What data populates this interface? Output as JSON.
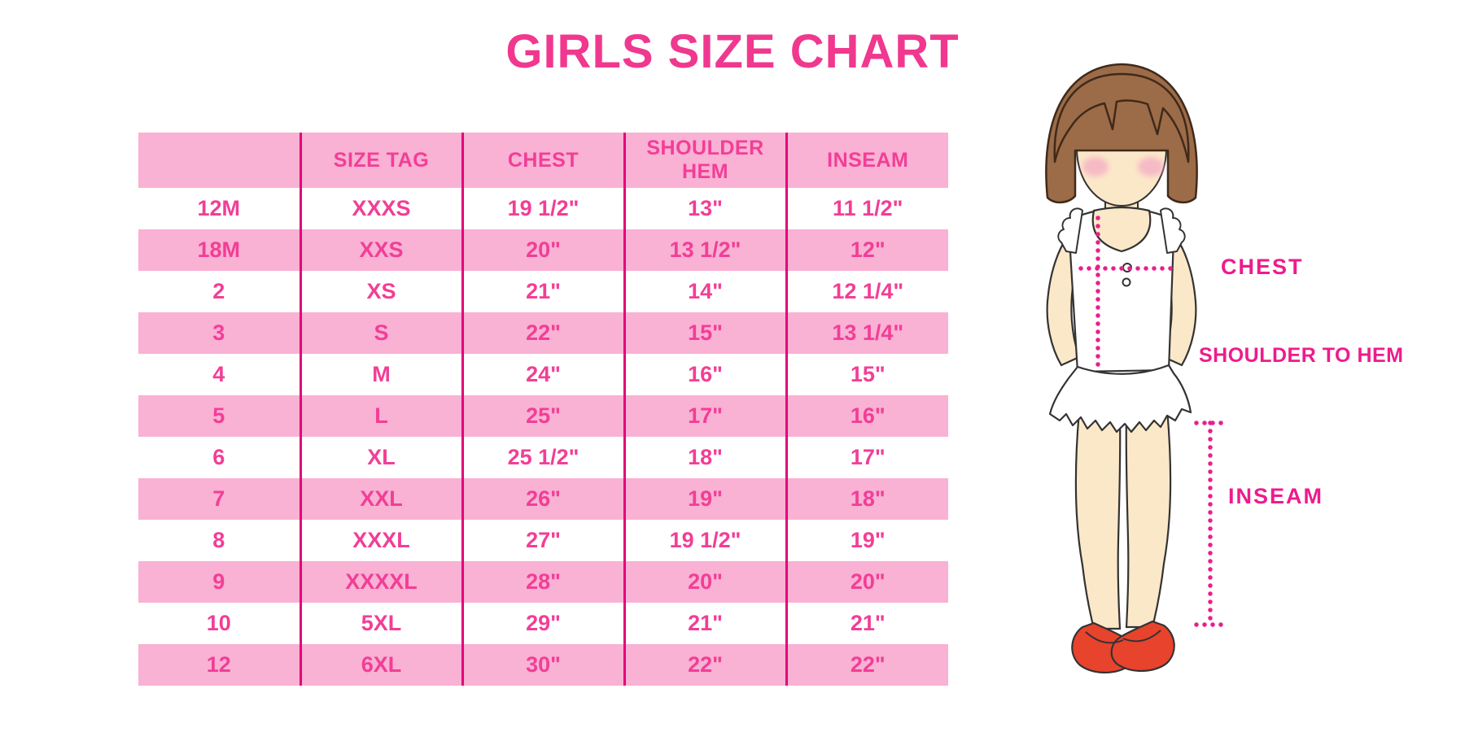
{
  "title": {
    "text": "GIRLS SIZE CHART"
  },
  "chart_data": {
    "type": "table",
    "title": "GIRLS SIZE CHART",
    "columns": [
      "",
      "SIZE TAG",
      "CHEST",
      "SHOULDER HEM",
      "INSEAM"
    ],
    "rows": [
      [
        "12M",
        "XXXS",
        "19 1/2\"",
        "13\"",
        "11 1/2\""
      ],
      [
        "18M",
        "XXS",
        "20\"",
        "13 1/2\"",
        "12\""
      ],
      [
        "2",
        "XS",
        "21\"",
        "14\"",
        "12 1/4\""
      ],
      [
        "3",
        "S",
        "22\"",
        "15\"",
        "13 1/4\""
      ],
      [
        "4",
        "M",
        "24\"",
        "16\"",
        "15\""
      ],
      [
        "5",
        "L",
        "25\"",
        "17\"",
        "16\""
      ],
      [
        "6",
        "XL",
        "25 1/2\"",
        "18\"",
        "17\""
      ],
      [
        "7",
        "XXL",
        "26\"",
        "19\"",
        "18\""
      ],
      [
        "8",
        "XXXL",
        "27\"",
        "19 1/2\"",
        "19\""
      ],
      [
        "9",
        "XXXXL",
        "28\"",
        "20\"",
        "20\""
      ],
      [
        "10",
        "5XL",
        "29\"",
        "21\"",
        "21\""
      ],
      [
        "12",
        "6XL",
        "30\"",
        "22\"",
        "22\""
      ]
    ],
    "layout_hints": {
      "banding": "pink header band, data rows alternate white/pink",
      "gridlines": "vertical column dividers only"
    },
    "colors": {
      "band_pink": "#f9b1d4",
      "text_pink": "#f23e96",
      "divider_pink": "#e5007d",
      "title_pink": "#f0388f",
      "label_magenta": "#ee1b8d"
    }
  },
  "figure": {
    "description": "Cartoon girl illustration with dotted measurement guides",
    "labels": {
      "chest": "CHEST",
      "shoulder_to_hem": "SHOULDER TO HEM",
      "inseam": "INSEAM"
    },
    "colors": {
      "hair_brown": "#9c6b48",
      "skin": "#fbe8c8",
      "blush": "#f5b3c5",
      "shoe_red": "#e8432c",
      "dotted_line": "#e91f8e"
    }
  }
}
